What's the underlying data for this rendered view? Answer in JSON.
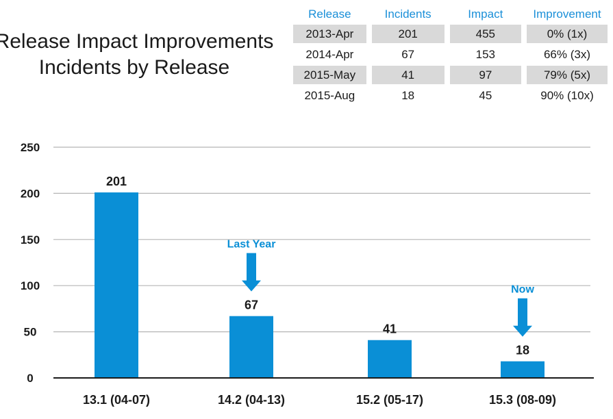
{
  "title": {
    "line1": "Release Impact Improvements",
    "line2": "Incidents by Release"
  },
  "table": {
    "headers": [
      "Release",
      "Incidents",
      "Impact",
      "Improvement"
    ],
    "rows": [
      [
        "2013-Apr",
        "201",
        "455",
        "0% (1x)"
      ],
      [
        "2014-Apr",
        "67",
        "153",
        "66% (3x)"
      ],
      [
        "2015-May",
        "41",
        "97",
        "79% (5x)"
      ],
      [
        "2015-Aug",
        "18",
        "45",
        "90% (10x)"
      ]
    ]
  },
  "chart_data": {
    "type": "bar",
    "categories": [
      "13.1 (04-07)",
      "14.2 (04-13)",
      "15.2 (05-17)",
      "15.3 (08-09)"
    ],
    "values": [
      201,
      67,
      41,
      18
    ],
    "data_labels": [
      "201",
      "67",
      "41",
      "18"
    ],
    "ylim": [
      0,
      250
    ],
    "yticks": [
      0,
      50,
      100,
      150,
      200,
      250
    ],
    "grid": true,
    "bar_color": "#0a8fd6",
    "annotations": [
      {
        "text": "Last Year",
        "category_index": 1
      },
      {
        "text": "Now",
        "category_index": 3
      }
    ]
  },
  "colors": {
    "accent": "#0a8fd6",
    "header_text": "#1a8fd8",
    "row_shade": "#d9d9d9",
    "grid": "#b5b5b5"
  }
}
